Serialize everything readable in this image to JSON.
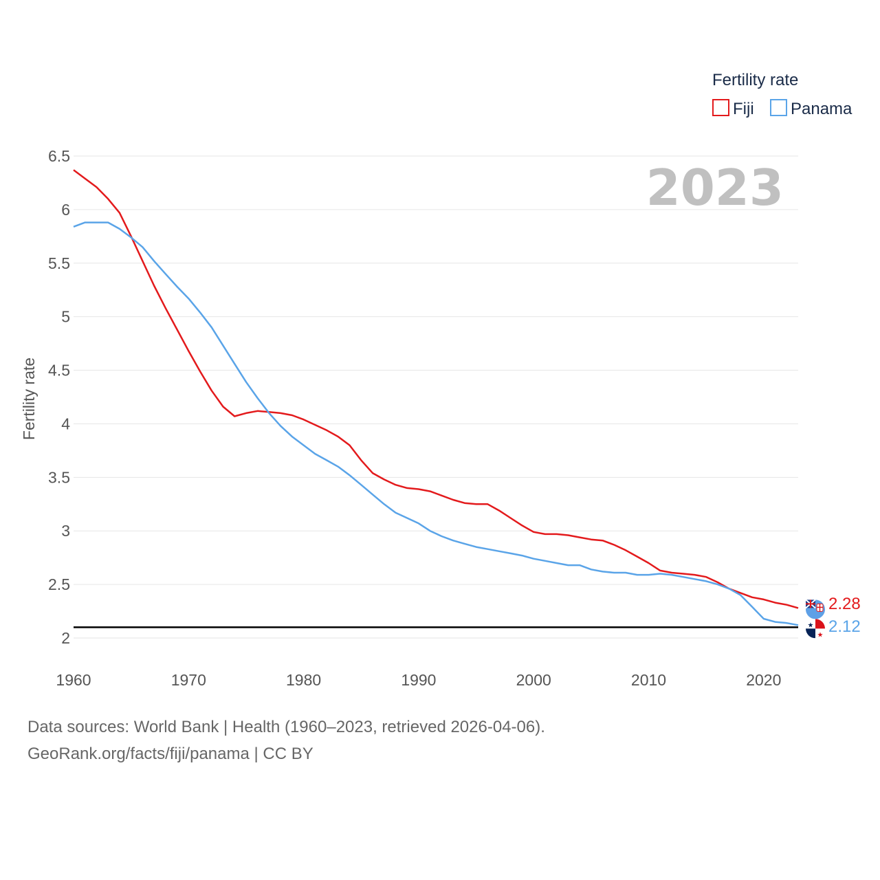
{
  "chart_data": {
    "type": "line",
    "legend_title": "Fertility rate",
    "ylabel": "Fertility rate",
    "year_label": "2023",
    "xlim": [
      1960,
      2023
    ],
    "ylim": [
      2,
      6.5
    ],
    "x_ticks": [
      "1960",
      "1970",
      "1980",
      "1990",
      "2000",
      "2010",
      "2020"
    ],
    "y_ticks": [
      "6.5",
      "6",
      "5.5",
      "5",
      "4.5",
      "4",
      "3.5",
      "3",
      "2.5",
      "2"
    ],
    "reference_line": 2.1,
    "series": [
      {
        "name": "Fiji",
        "color": "#e31a1c",
        "end_value": "2.28",
        "x": [
          1960,
          1961,
          1962,
          1963,
          1964,
          1965,
          1966,
          1967,
          1968,
          1969,
          1970,
          1971,
          1972,
          1973,
          1974,
          1975,
          1976,
          1977,
          1978,
          1979,
          1980,
          1981,
          1982,
          1983,
          1984,
          1985,
          1986,
          1987,
          1988,
          1989,
          1990,
          1991,
          1992,
          1993,
          1994,
          1995,
          1996,
          1997,
          1998,
          1999,
          2000,
          2001,
          2002,
          2003,
          2004,
          2005,
          2006,
          2007,
          2008,
          2009,
          2010,
          2011,
          2012,
          2013,
          2014,
          2015,
          2016,
          2017,
          2018,
          2019,
          2020,
          2021,
          2022,
          2023
        ],
        "y": [
          6.37,
          6.29,
          6.21,
          6.1,
          5.97,
          5.75,
          5.52,
          5.29,
          5.08,
          4.88,
          4.68,
          4.49,
          4.31,
          4.16,
          4.07,
          4.1,
          4.12,
          4.11,
          4.1,
          4.08,
          4.04,
          3.99,
          3.94,
          3.88,
          3.8,
          3.66,
          3.54,
          3.48,
          3.43,
          3.4,
          3.39,
          3.37,
          3.33,
          3.29,
          3.26,
          3.25,
          3.25,
          3.19,
          3.12,
          3.05,
          2.99,
          2.97,
          2.97,
          2.96,
          2.94,
          2.92,
          2.91,
          2.87,
          2.82,
          2.76,
          2.7,
          2.63,
          2.61,
          2.6,
          2.59,
          2.57,
          2.52,
          2.46,
          2.42,
          2.38,
          2.36,
          2.33,
          2.31,
          2.28
        ]
      },
      {
        "name": "Panama",
        "color": "#5aa4e8",
        "end_value": "2.12",
        "x": [
          1960,
          1961,
          1962,
          1963,
          1964,
          1965,
          1966,
          1967,
          1968,
          1969,
          1970,
          1971,
          1972,
          1973,
          1974,
          1975,
          1976,
          1977,
          1978,
          1979,
          1980,
          1981,
          1982,
          1983,
          1984,
          1985,
          1986,
          1987,
          1988,
          1989,
          1990,
          1991,
          1992,
          1993,
          1994,
          1995,
          1996,
          1997,
          1998,
          1999,
          2000,
          2001,
          2002,
          2003,
          2004,
          2005,
          2006,
          2007,
          2008,
          2009,
          2010,
          2011,
          2012,
          2013,
          2014,
          2015,
          2016,
          2017,
          2018,
          2019,
          2020,
          2021,
          2022,
          2023
        ],
        "y": [
          5.84,
          5.88,
          5.88,
          5.88,
          5.82,
          5.74,
          5.65,
          5.52,
          5.4,
          5.28,
          5.17,
          5.04,
          4.9,
          4.73,
          4.56,
          4.39,
          4.24,
          4.1,
          3.98,
          3.88,
          3.8,
          3.72,
          3.66,
          3.6,
          3.52,
          3.43,
          3.34,
          3.25,
          3.17,
          3.12,
          3.07,
          3.0,
          2.95,
          2.91,
          2.88,
          2.85,
          2.83,
          2.81,
          2.79,
          2.77,
          2.74,
          2.72,
          2.7,
          2.68,
          2.68,
          2.64,
          2.62,
          2.61,
          2.61,
          2.59,
          2.59,
          2.6,
          2.59,
          2.57,
          2.55,
          2.53,
          2.5,
          2.46,
          2.4,
          2.29,
          2.18,
          2.15,
          2.14,
          2.12
        ]
      }
    ]
  },
  "source": {
    "line1": "Data sources: World Bank | Health (1960–2023, retrieved 2026-04-06).",
    "line2": "GeoRank.org/facts/fiji/panama | CC BY"
  }
}
